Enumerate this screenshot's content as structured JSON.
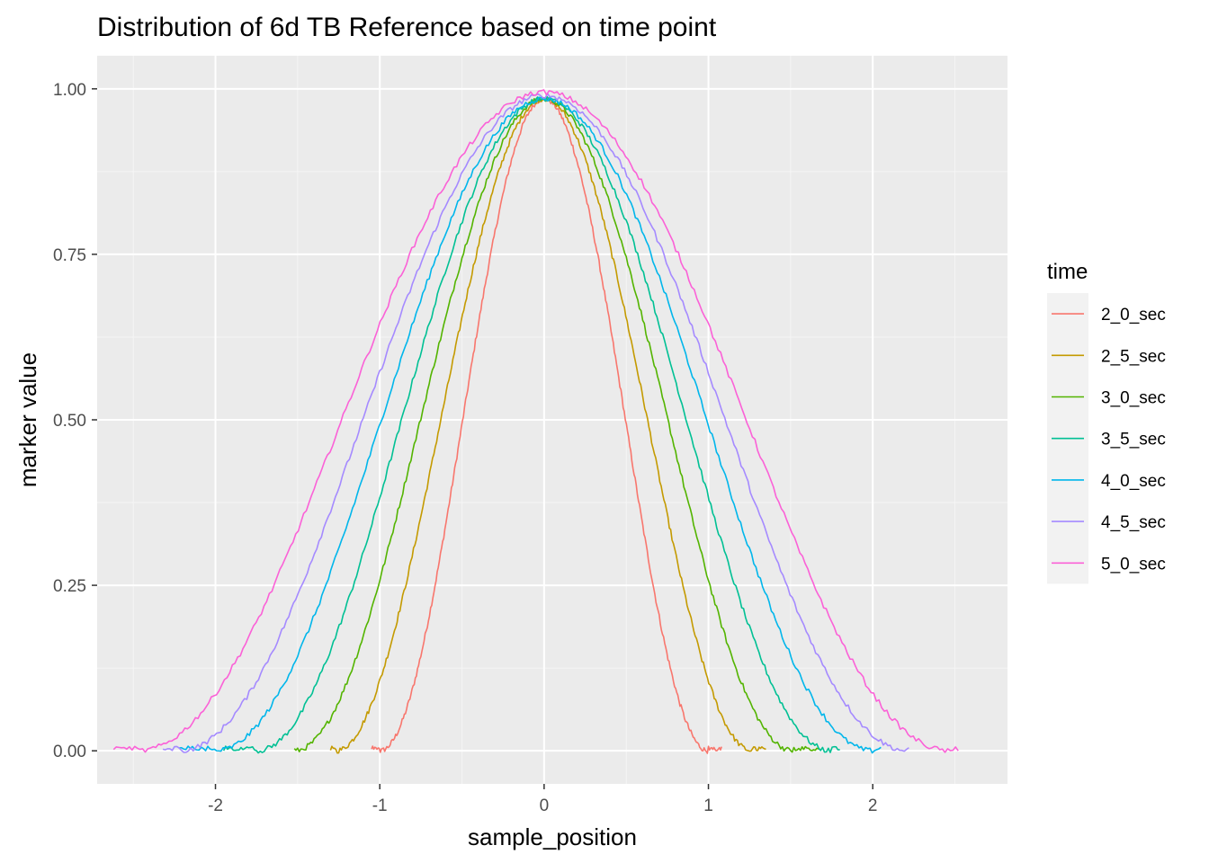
{
  "chart_data": {
    "type": "line",
    "title": "Distribution of 6d TB Reference based on time point",
    "xlabel": "sample_position",
    "ylabel": "marker value",
    "xlim": [
      -2.72,
      2.82
    ],
    "ylim": [
      -0.05,
      1.05
    ],
    "x_ticks": [
      -2,
      -1,
      0,
      1,
      2
    ],
    "x_tick_labels": [
      "-2",
      "-1",
      "0",
      "1",
      "2"
    ],
    "y_ticks": [
      0.0,
      0.25,
      0.5,
      0.75,
      1.0
    ],
    "y_tick_labels": [
      "0.00",
      "0.25",
      "0.50",
      "0.75",
      "1.00"
    ],
    "grid": true,
    "legend": {
      "title": "time",
      "position": "right"
    },
    "series": [
      {
        "name": "2_0_sec",
        "color": "#F8766D",
        "x_min": -1.05,
        "x_max": 1.08,
        "peak": 0.985,
        "spread": 1.0,
        "points": [
          [
            -1.05,
            0.01
          ],
          [
            -0.95,
            0.01
          ],
          [
            -0.8,
            0.16
          ],
          [
            -0.6,
            0.46
          ],
          [
            -0.4,
            0.72
          ],
          [
            -0.2,
            0.91
          ],
          [
            0.0,
            0.985
          ],
          [
            0.2,
            0.89
          ],
          [
            0.4,
            0.66
          ],
          [
            0.6,
            0.36
          ],
          [
            0.8,
            0.11
          ],
          [
            0.95,
            0.01
          ],
          [
            1.08,
            0.01
          ]
        ]
      },
      {
        "name": "2_5_sec",
        "color": "#C49A00",
        "x_min": -1.3,
        "x_max": 1.35,
        "peak": 0.985,
        "spread": 1.27,
        "points": [
          [
            -1.3,
            0.005
          ],
          [
            -1.2,
            0.0
          ],
          [
            -1.0,
            0.15
          ],
          [
            -0.75,
            0.48
          ],
          [
            -0.5,
            0.74
          ],
          [
            -0.25,
            0.92
          ],
          [
            0.0,
            0.985
          ],
          [
            0.25,
            0.9
          ],
          [
            0.5,
            0.68
          ],
          [
            0.75,
            0.36
          ],
          [
            1.0,
            0.12
          ],
          [
            1.2,
            0.01
          ],
          [
            1.35,
            0.01
          ]
        ]
      },
      {
        "name": "3_0_sec",
        "color": "#53B400",
        "x_min": -1.52,
        "x_max": 1.68,
        "peak": 0.985,
        "spread": 1.52,
        "points": [
          [
            -1.52,
            0.0
          ],
          [
            -1.4,
            0.0
          ],
          [
            -1.2,
            0.13
          ],
          [
            -0.9,
            0.47
          ],
          [
            -0.6,
            0.76
          ],
          [
            -0.3,
            0.93
          ],
          [
            0.0,
            0.985
          ],
          [
            0.3,
            0.91
          ],
          [
            0.6,
            0.7
          ],
          [
            0.9,
            0.38
          ],
          [
            1.2,
            0.12
          ],
          [
            1.45,
            0.0
          ],
          [
            1.68,
            0.01
          ]
        ]
      },
      {
        "name": "3_5_sec",
        "color": "#00C094",
        "x_min": -1.95,
        "x_max": 1.8,
        "peak": 0.985,
        "spread": 1.75,
        "points": [
          [
            -1.95,
            0.01
          ],
          [
            -1.8,
            0.0
          ],
          [
            -1.5,
            0.12
          ],
          [
            -1.1,
            0.47
          ],
          [
            -0.7,
            0.78
          ],
          [
            -0.35,
            0.93
          ],
          [
            0.0,
            0.985
          ],
          [
            0.35,
            0.91
          ],
          [
            0.7,
            0.69
          ],
          [
            1.1,
            0.37
          ],
          [
            1.4,
            0.11
          ],
          [
            1.6,
            0.01
          ],
          [
            1.8,
            0.01
          ]
        ]
      },
      {
        "name": "4_0_sec",
        "color": "#00B6EB",
        "x_min": -2.22,
        "x_max": 2.05,
        "peak": 0.985,
        "spread": 2.0,
        "points": [
          [
            -2.22,
            0.01
          ],
          [
            -2.0,
            0.0
          ],
          [
            -1.7,
            0.12
          ],
          [
            -1.3,
            0.46
          ],
          [
            -0.8,
            0.78
          ],
          [
            -0.4,
            0.94
          ],
          [
            0.0,
            0.985
          ],
          [
            0.4,
            0.92
          ],
          [
            0.8,
            0.7
          ],
          [
            1.2,
            0.41
          ],
          [
            1.6,
            0.13
          ],
          [
            1.85,
            0.01
          ],
          [
            2.05,
            0.01
          ]
        ]
      },
      {
        "name": "4_5_sec",
        "color": "#A58AFF",
        "x_min": -2.32,
        "x_max": 2.22,
        "peak": 0.99,
        "spread": 2.22,
        "points": [
          [
            -2.32,
            0.0
          ],
          [
            -2.1,
            0.02
          ],
          [
            -1.8,
            0.16
          ],
          [
            -1.4,
            0.47
          ],
          [
            -0.9,
            0.8
          ],
          [
            -0.45,
            0.95
          ],
          [
            0.0,
            0.99
          ],
          [
            0.45,
            0.93
          ],
          [
            0.9,
            0.73
          ],
          [
            1.4,
            0.42
          ],
          [
            1.8,
            0.14
          ],
          [
            2.05,
            0.01
          ],
          [
            2.22,
            0.0
          ]
        ]
      },
      {
        "name": "5_0_sec",
        "color": "#FB61D7",
        "x_min": -2.62,
        "x_max": 2.52,
        "peak": 0.995,
        "spread": 2.47,
        "points": [
          [
            -2.62,
            0.0
          ],
          [
            -2.4,
            0.01
          ],
          [
            -2.0,
            0.12
          ],
          [
            -1.5,
            0.45
          ],
          [
            -1.0,
            0.78
          ],
          [
            -0.5,
            0.95
          ],
          [
            0.0,
            0.995
          ],
          [
            0.5,
            0.94
          ],
          [
            1.0,
            0.74
          ],
          [
            1.5,
            0.45
          ],
          [
            2.0,
            0.14
          ],
          [
            2.3,
            0.01
          ],
          [
            2.52,
            0.0
          ]
        ]
      }
    ]
  }
}
